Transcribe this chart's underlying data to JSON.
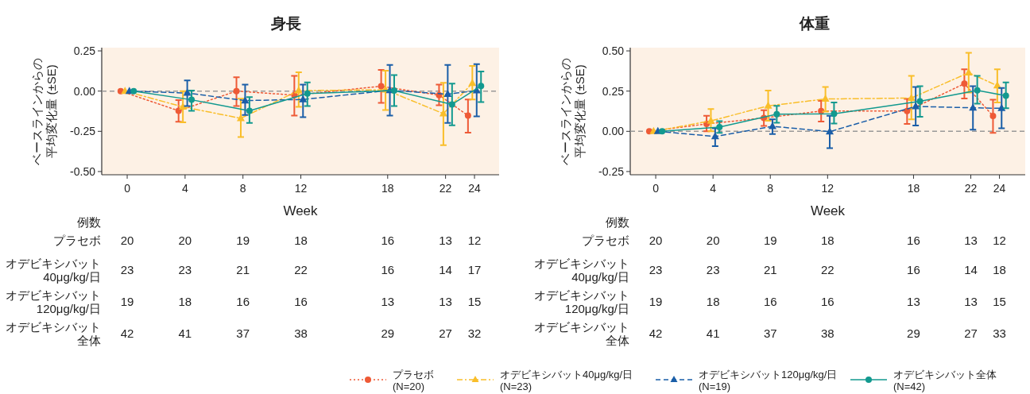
{
  "chart_data": [
    {
      "type": "line",
      "title": "身長",
      "xlabel": "Week",
      "ylabel": "ベースラインからの平均変化量 (±SE)",
      "xlim": [
        -1.76,
        25.7
      ],
      "xticks": [
        0,
        4,
        8,
        12,
        18,
        22,
        24
      ],
      "ylim": [
        -0.52,
        0.27
      ],
      "yticks": [
        {
          "value": -0.5,
          "label": "-0.50"
        },
        {
          "value": -0.25,
          "label": "-0.25"
        },
        {
          "value": 0,
          "label": "0.00"
        },
        {
          "value": 0.25,
          "label": "0.25"
        }
      ],
      "ref_lines": [
        {
          "axis": "y",
          "value": 0,
          "color": "#999999",
          "line_style": "dashed"
        }
      ],
      "legend": "bottom right",
      "series": [
        {
          "name": "プラセボ\n(N=20)",
          "color": "#ee5a36",
          "line_style": "dotted",
          "marker": "circle",
          "x": [
            -0.45,
            3.55,
            7.55,
            11.55,
            17.55,
            21.55,
            23.55
          ],
          "values": [
            0,
            -0.122,
            0,
            -0.025,
            0.03,
            -0.025,
            -0.152
          ],
          "errors": [
            null,
            [
              -0.191,
              -0.056
            ],
            [
              -0.093,
              0.086
            ],
            [
              -0.152,
              0.095
            ],
            [
              -0.073,
              0.132
            ],
            [
              -0.088,
              0.041
            ],
            [
              -0.258,
              -0.052
            ]
          ]
        },
        {
          "name": "オデビキシバット40μg/kg/日\n(N=23)",
          "color": "#f9be2a",
          "line_style": "dashdot",
          "marker": "triangle",
          "x": [
            -0.15,
            3.85,
            7.85,
            11.85,
            17.85,
            21.85,
            23.85
          ],
          "values": [
            0,
            -0.098,
            -0.169,
            0.003,
            0.008,
            -0.14,
            0.049
          ],
          "errors": [
            null,
            [
              -0.194,
              0
            ],
            [
              -0.285,
              -0.047
            ],
            [
              -0.098,
              0.117
            ],
            [
              -0.118,
              0.127
            ],
            [
              -0.336,
              0.051
            ],
            [
              -0.052,
              0.157
            ]
          ]
        },
        {
          "name": "オデビキシバット120μg/kg/日\n(N=19)",
          "color": "#1a5ea8",
          "line_style": "dashed",
          "marker": "triangle",
          "x": [
            0.15,
            4.15,
            8.15,
            12.15,
            18.15,
            22.15,
            24.15
          ],
          "values": [
            0,
            -0.012,
            -0.059,
            -0.052,
            0.005,
            -0.019,
            0.003
          ],
          "errors": [
            null,
            [
              -0.093,
              0.066
            ],
            [
              -0.149,
              0.041
            ],
            [
              -0.162,
              0.041
            ],
            [
              -0.152,
              0.162
            ],
            [
              -0.198,
              0.162
            ],
            [
              -0.157,
              0.167
            ]
          ]
        },
        {
          "name": "オデビキシバット全体\n(N=42)",
          "color": "#12998f",
          "line_style": "solid",
          "marker": "circle",
          "x": [
            0.45,
            4.45,
            8.45,
            12.45,
            18.45,
            22.45,
            24.45
          ],
          "values": [
            0,
            -0.054,
            -0.123,
            -0.015,
            0.003,
            -0.083,
            0.032
          ],
          "errors": [
            null,
            [
              -0.123,
              0.003
            ],
            [
              -0.198,
              -0.037
            ],
            [
              -0.093,
              0.054
            ],
            [
              -0.093,
              0.1
            ],
            [
              -0.213,
              0.046
            ],
            [
              -0.068,
              0.122
            ]
          ]
        }
      ],
      "annotations": [
        "例数",
        "プラセボ",
        "20",
        "20",
        "19",
        "18",
        "16",
        "13",
        "12",
        "オデビキシバット40μg/kg/日",
        "23",
        "23",
        "21",
        "22",
        "16",
        "14",
        "17",
        "オデビキシバット120μg/kg/日",
        "19",
        "18",
        "16",
        "16",
        "13",
        "13",
        "15",
        "オデビキシバット全体",
        "42",
        "41",
        "37",
        "38",
        "29",
        "27",
        "32"
      ]
    },
    {
      "type": "line",
      "title": "体重",
      "xlabel": "Week",
      "ylabel": "ベースラインからの平均変化量 (±SE)",
      "xlim": [
        -1.78,
        25.8
      ],
      "xticks": [
        0,
        4,
        8,
        12,
        18,
        22,
        24
      ],
      "ylim": [
        -0.27,
        0.52
      ],
      "yticks": [
        {
          "value": -0.25,
          "label": "-0.25"
        },
        {
          "value": 0,
          "label": "0.00"
        },
        {
          "value": 0.25,
          "label": "0.25"
        },
        {
          "value": 0.5,
          "label": "0.50"
        }
      ],
      "ref_lines": [
        {
          "axis": "y",
          "value": 0,
          "color": "#999999",
          "line_style": "dashed"
        }
      ],
      "series": [
        {
          "color": "#ee5a36",
          "line_style": "dotted",
          "marker": "circle",
          "x": [
            -0.45,
            3.55,
            7.55,
            11.55,
            17.55,
            21.55,
            23.55
          ],
          "values": [
            0,
            0.046,
            0.083,
            0.126,
            0.126,
            0.296,
            0.095
          ],
          "errors": [
            null,
            [
              0,
              0.097
            ],
            [
              0.034,
              0.131
            ],
            [
              0.061,
              0.189
            ],
            [
              0.046,
              0.202
            ],
            [
              0.204,
              0.386
            ],
            [
              -0.01,
              0.197
            ]
          ]
        },
        {
          "color": "#f9be2a",
          "line_style": "dashdot",
          "marker": "triangle",
          "x": [
            -0.15,
            3.85,
            7.85,
            11.85,
            17.85,
            21.85,
            23.85
          ],
          "values": [
            0,
            0.065,
            0.158,
            0.201,
            0.207,
            0.364,
            0.284
          ],
          "errors": [
            null,
            [
              0,
              0.138
            ],
            [
              0.066,
              0.253
            ],
            [
              0.122,
              0.276
            ],
            [
              0.075,
              0.345
            ],
            [
              0.241,
              0.488
            ],
            [
              0.179,
              0.386
            ]
          ]
        },
        {
          "color": "#1a5ea8",
          "line_style": "dashed",
          "marker": "triangle",
          "x": [
            0.15,
            4.15,
            8.15,
            12.15,
            18.15,
            22.15,
            24.15
          ],
          "values": [
            0,
            -0.032,
            0.031,
            -0.002,
            0.155,
            0.146,
            0.143
          ],
          "errors": [
            null,
            [
              -0.092,
              0.019
            ],
            [
              -0.017,
              0.075
            ],
            [
              -0.104,
              0.097
            ],
            [
              0.036,
              0.276
            ],
            [
              0.01,
              0.281
            ],
            [
              0.019,
              0.269
            ]
          ]
        },
        {
          "color": "#12998f",
          "line_style": "solid",
          "marker": "circle",
          "x": [
            0.45,
            4.45,
            8.45,
            12.45,
            18.45,
            22.45,
            24.45
          ],
          "values": [
            0,
            0.026,
            0.107,
            0.109,
            0.187,
            0.255,
            0.221
          ],
          "errors": [
            null,
            [
              -0.01,
              0.063
            ],
            [
              0.053,
              0.158
            ],
            [
              0.049,
              0.179
            ],
            [
              0.09,
              0.281
            ],
            [
              0.172,
              0.345
            ],
            [
              0.143,
              0.304
            ]
          ]
        }
      ],
      "annotations": [
        "例数",
        "プラセボ",
        "20",
        "20",
        "19",
        "18",
        "16",
        "13",
        "12",
        "オデビキシバット40μg/kg/日",
        "23",
        "23",
        "21",
        "22",
        "16",
        "14",
        "18",
        "オデビキシバット120μg/kg/日",
        "19",
        "18",
        "16",
        "16",
        "13",
        "13",
        "15",
        "オデビキシバット全体",
        "42",
        "41",
        "37",
        "38",
        "29",
        "27",
        "33"
      ]
    }
  ]
}
